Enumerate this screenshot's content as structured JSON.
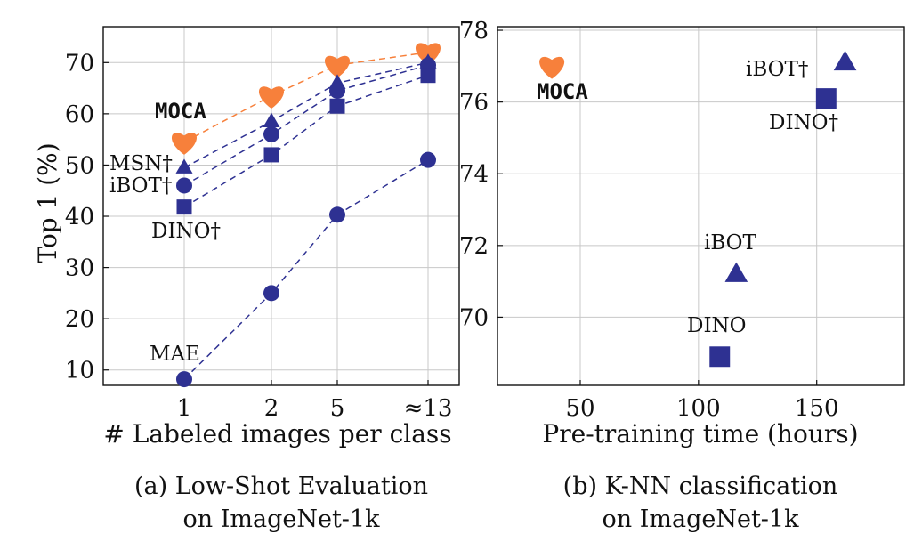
{
  "colors": {
    "baseline": "#2e3192",
    "moca": "#f7803b",
    "grid": "#c8c8c8",
    "axis": "#111111"
  },
  "chart_data": [
    {
      "type": "line",
      "title": "",
      "caption_line1": "(a) Low-Shot Evaluation",
      "caption_line2": "on ImageNet-1k",
      "xlabel": "# Labeled images per class",
      "ylabel": "Top 1 (%)",
      "categories": [
        "1",
        "2",
        "5",
        "≈13"
      ],
      "ylim": [
        7,
        77
      ],
      "yticks": [
        10,
        20,
        30,
        40,
        50,
        60,
        70
      ],
      "grid": true,
      "series": [
        {
          "name": "MOCA",
          "marker": "heart",
          "color": "moca",
          "values": [
            54.5,
            63.5,
            69.5,
            72
          ],
          "label": "MOCA"
        },
        {
          "name": "MSN†",
          "marker": "triangle",
          "color": "baseline",
          "values": [
            49.5,
            58.5,
            66,
            70
          ],
          "label": "MSN†"
        },
        {
          "name": "iBOT†",
          "marker": "circle",
          "color": "baseline",
          "values": [
            46,
            56,
            64.5,
            69.5
          ],
          "label": "iBOT†"
        },
        {
          "name": "DINO†",
          "marker": "square",
          "color": "baseline",
          "values": [
            41.8,
            52,
            61.5,
            67.5
          ],
          "label": "DINO†"
        },
        {
          "name": "MAE",
          "marker": "circle",
          "color": "baseline",
          "values": [
            8.2,
            25,
            40.3,
            51
          ],
          "label": "MAE"
        }
      ]
    },
    {
      "type": "scatter",
      "title": "",
      "caption_line1": "(b) K-NN classification",
      "caption_line2": "on ImageNet-1k",
      "xlabel": "Pre-training time (hours)",
      "ylabel": "",
      "xlim": [
        15,
        187
      ],
      "ylim": [
        68.1,
        78.1
      ],
      "xticks": [
        50,
        100,
        150
      ],
      "yticks": [
        70,
        72,
        74,
        76,
        78
      ],
      "grid": true,
      "points": [
        {
          "name": "MOCA",
          "x": 38,
          "y": 77.0,
          "marker": "heart",
          "color": "moca",
          "label": "MOCA"
        },
        {
          "name": "iBOT†",
          "x": 162,
          "y": 77.1,
          "marker": "triangle",
          "color": "baseline",
          "label": "iBOT†"
        },
        {
          "name": "DINO†",
          "x": 154,
          "y": 76.1,
          "marker": "square",
          "color": "baseline",
          "label": "DINO†"
        },
        {
          "name": "iBOT",
          "x": 116,
          "y": 71.2,
          "marker": "triangle",
          "color": "baseline",
          "label": "iBOT"
        },
        {
          "name": "DINO",
          "x": 109,
          "y": 68.9,
          "marker": "square",
          "color": "baseline",
          "label": "DINO"
        }
      ]
    }
  ]
}
